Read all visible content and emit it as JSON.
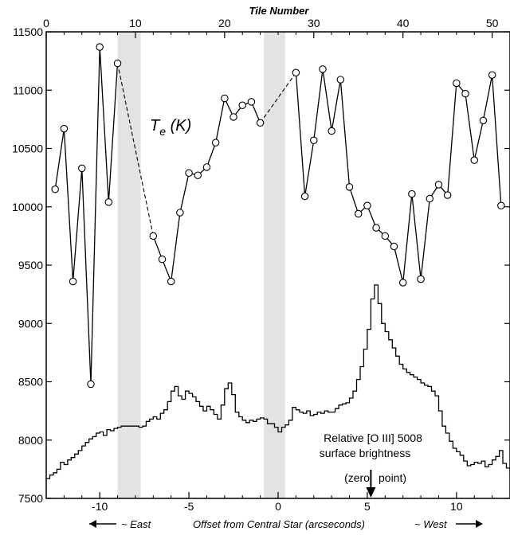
{
  "chart_data": {
    "type": "line",
    "title": "",
    "top_axis": {
      "label": "Tile Number",
      "range": [
        0,
        52
      ],
      "ticks": [
        0,
        10,
        20,
        30,
        40,
        50
      ]
    },
    "bottom_axis": {
      "label": "Offset from Central Star (arcseconds)",
      "range": [
        -13,
        13
      ],
      "ticks": [
        -10,
        -5,
        0,
        5,
        10
      ],
      "tick_labels": [
        "-10",
        "-5",
        "0",
        "5",
        "10"
      ],
      "east_label": "~ East",
      "west_label": "~ West"
    },
    "y_axis": {
      "range": [
        7500,
        11500
      ],
      "ticks": [
        7500,
        8000,
        8500,
        9000,
        9500,
        10000,
        10500,
        11000,
        11500
      ]
    },
    "shaded_bands": [
      {
        "x": [
          -9.0,
          -7.7
        ]
      },
      {
        "x": [
          -0.8,
          0.4
        ]
      }
    ],
    "series": [
      {
        "name": "Te (K)",
        "label_main": "T",
        "label_sub": "e",
        "label_unit": " (K)",
        "color": "#000000",
        "marker": "open-circle",
        "segments": [
          [
            [
              1,
              10150
            ],
            [
              2,
              10670
            ],
            [
              3,
              9360
            ],
            [
              4,
              10330
            ],
            [
              5,
              8480
            ],
            [
              6,
              11370
            ],
            [
              7,
              10040
            ],
            [
              8,
              11230
            ]
          ],
          [
            [
              12,
              9750
            ],
            [
              13,
              9550
            ],
            [
              14,
              9360
            ],
            [
              15,
              9950
            ],
            [
              16,
              10290
            ],
            [
              17,
              10270
            ],
            [
              18,
              10340
            ],
            [
              19,
              10550
            ],
            [
              20,
              10930
            ],
            [
              21,
              10770
            ],
            [
              22,
              10870
            ],
            [
              23,
              10900
            ],
            [
              24,
              10720
            ]
          ],
          [
            [
              28,
              11150
            ],
            [
              29,
              10090
            ],
            [
              30,
              10570
            ],
            [
              31,
              11180
            ],
            [
              32,
              10650
            ],
            [
              33,
              11090
            ],
            [
              34,
              10170
            ],
            [
              35,
              9940
            ],
            [
              36,
              10010
            ],
            [
              37,
              9820
            ],
            [
              38,
              9750
            ],
            [
              39,
              9660
            ],
            [
              40,
              9350
            ],
            [
              41,
              10110
            ],
            [
              42,
              9380
            ],
            [
              43,
              10070
            ],
            [
              44,
              10190
            ],
            [
              45,
              10100
            ],
            [
              46,
              11060
            ],
            [
              47,
              10970
            ],
            [
              48,
              10400
            ],
            [
              49,
              10740
            ],
            [
              50,
              11130
            ],
            [
              51,
              10010
            ]
          ]
        ],
        "gap_connectors": [
          [
            [
              8,
              11230
            ],
            [
              12,
              9750
            ]
          ],
          [
            [
              24,
              10720
            ],
            [
              28,
              11150
            ]
          ]
        ]
      },
      {
        "name": "Relative [O III] 5008 surface brightness",
        "color": "#000000",
        "x": [
          -13.0,
          -12.8,
          -12.6,
          -12.4,
          -12.2,
          -12.0,
          -11.8,
          -11.6,
          -11.4,
          -11.2,
          -11.0,
          -10.8,
          -10.6,
          -10.4,
          -10.2,
          -10.0,
          -9.8,
          -9.6,
          -9.4,
          -9.2,
          -9.0,
          -8.8,
          -8.6,
          -8.4,
          -8.2,
          -8.0,
          -7.8,
          -7.6,
          -7.4,
          -7.2,
          -7.0,
          -6.8,
          -6.6,
          -6.4,
          -6.2,
          -6.0,
          -5.8,
          -5.6,
          -5.4,
          -5.2,
          -5.0,
          -4.8,
          -4.6,
          -4.4,
          -4.2,
          -4.0,
          -3.8,
          -3.6,
          -3.4,
          -3.2,
          -3.0,
          -2.8,
          -2.6,
          -2.4,
          -2.2,
          -2.0,
          -1.8,
          -1.6,
          -1.4,
          -1.2,
          -1.0,
          -0.8,
          -0.6,
          -0.4,
          -0.2,
          0.0,
          0.2,
          0.4,
          0.6,
          0.8,
          1.0,
          1.2,
          1.4,
          1.6,
          1.8,
          2.0,
          2.2,
          2.4,
          2.6,
          2.8,
          3.0,
          3.2,
          3.4,
          3.6,
          3.8,
          4.0,
          4.2,
          4.4,
          4.6,
          4.8,
          5.0,
          5.2,
          5.4,
          5.6,
          5.8,
          6.0,
          6.2,
          6.4,
          6.6,
          6.8,
          7.0,
          7.2,
          7.4,
          7.6,
          7.8,
          8.0,
          8.2,
          8.4,
          8.6,
          8.8,
          9.0,
          9.2,
          9.4,
          9.6,
          9.8,
          10.0,
          10.2,
          10.4,
          10.6,
          10.8,
          11.0,
          11.2,
          11.4,
          11.6,
          11.8,
          12.0,
          12.2,
          12.4,
          12.6,
          12.8,
          13.0
        ],
        "values": [
          7670,
          7700,
          7720,
          7750,
          7810,
          7790,
          7830,
          7850,
          7880,
          7910,
          7950,
          7980,
          8010,
          8030,
          8060,
          8070,
          8040,
          8090,
          8080,
          8100,
          8110,
          8120,
          8120,
          8120,
          8120,
          8120,
          8110,
          8120,
          8160,
          8180,
          8200,
          8180,
          8230,
          8260,
          8330,
          8420,
          8460,
          8380,
          8350,
          8420,
          8400,
          8370,
          8330,
          8290,
          8250,
          8290,
          8260,
          8220,
          8180,
          8300,
          8440,
          8490,
          8390,
          8240,
          8200,
          8170,
          8150,
          8170,
          8160,
          8180,
          8190,
          8180,
          8140,
          8140,
          8110,
          8070,
          8110,
          8130,
          8170,
          8280,
          8260,
          8240,
          8230,
          8250,
          8210,
          8220,
          8240,
          8230,
          8250,
          8240,
          8240,
          8270,
          8300,
          8310,
          8320,
          8360,
          8420,
          8520,
          8630,
          8780,
          8950,
          9210,
          9330,
          9170,
          9000,
          8930,
          8860,
          8790,
          8720,
          8650,
          8610,
          8580,
          8560,
          8540,
          8520,
          8490,
          8470,
          8460,
          8420,
          8380,
          8250,
          8120,
          8060,
          7990,
          7930,
          7900,
          7870,
          7820,
          7780,
          7790,
          7810,
          7800,
          7820,
          7770,
          7790,
          7830,
          7860,
          7910,
          7800,
          7760,
          7720
        ]
      }
    ],
    "annotation": {
      "line1": "Relative [O III] 5008",
      "line2": "surface brightness",
      "zero_left": "(zero",
      "zero_right": "point)",
      "arrow_x": 5.2
    }
  }
}
